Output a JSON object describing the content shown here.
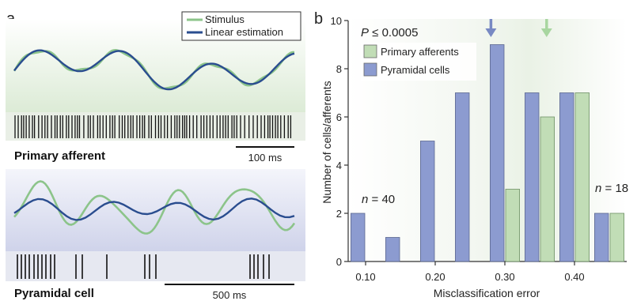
{
  "panel_a": {
    "letter": "a",
    "legend": [
      "Stimulus",
      "Linear estimation"
    ],
    "top_label": "Primary afferent",
    "top_scale": "100 ms",
    "bottom_label": "Pyramidal cell",
    "bottom_scale": "500 ms"
  },
  "panel_b": {
    "letter": "b",
    "p_prefix": "P",
    "p_rest": " ≤ 0.0005",
    "n_left": "n",
    "n_left_val": " = 40",
    "n_right": "n",
    "n_right_val": " = 18"
  },
  "colors": {
    "stimulus": "#8cc48a",
    "estimation": "#2a4d8f",
    "pyramidal_bar": "#8c9bd0",
    "primary_bar": "#c1ddb6",
    "arrow_pyramidal": "#7889c3",
    "arrow_primary": "#a8d6a0"
  },
  "chart_data": {
    "type": "bar",
    "xlabel": "Misclassification error",
    "ylabel": "Number of cells/afferents",
    "ylim": [
      0,
      10
    ],
    "yticks": [
      0,
      2,
      4,
      6,
      8,
      10
    ],
    "xticks": [
      "0.10",
      "0.20",
      "0.30",
      "0.40"
    ],
    "xtick_values": [
      0.1,
      0.2,
      0.3,
      0.4
    ],
    "bin_width": 0.05,
    "bin_centers": [
      0.1,
      0.15,
      0.2,
      0.25,
      0.3,
      0.35,
      0.4,
      0.45
    ],
    "series": [
      {
        "name": "Primary afferents",
        "values": [
          0,
          0,
          0,
          0,
          3,
          6,
          7,
          2
        ]
      },
      {
        "name": "Pyramidal cells",
        "values": [
          2,
          1,
          5,
          7,
          9,
          7,
          7,
          2
        ]
      }
    ],
    "arrows": [
      {
        "series": "Pyramidal cells",
        "x": 0.28
      },
      {
        "series": "Primary afferents",
        "x": 0.36
      }
    ]
  }
}
